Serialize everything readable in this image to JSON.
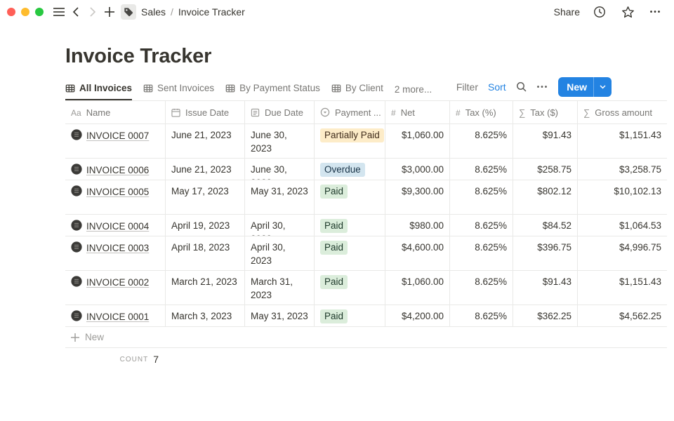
{
  "window": {
    "breadcrumb": {
      "section": "Sales",
      "separator": "/",
      "page": "Invoice Tracker"
    },
    "share_label": "Share"
  },
  "page": {
    "title": "Invoice Tracker"
  },
  "toolbar": {
    "tabs": [
      {
        "label": "All Invoices",
        "icon": "table-view-icon",
        "active": true
      },
      {
        "label": "Sent Invoices",
        "icon": "table-view-icon",
        "active": false
      },
      {
        "label": "By Payment Status",
        "icon": "table-view-icon",
        "active": false
      },
      {
        "label": "By Client",
        "icon": "table-view-icon",
        "active": false
      }
    ],
    "more_views_label": "2 more...",
    "filter_label": "Filter",
    "sort_label": "Sort",
    "search_icon": "search-icon",
    "more_icon": "ellipsis-icon",
    "new_button_label": "New",
    "accent_color": "#2383e2"
  },
  "table": {
    "columns": [
      {
        "label": "Name",
        "icon": "text-icon"
      },
      {
        "label": "Issue Date",
        "icon": "calendar-icon"
      },
      {
        "label": "Due Date",
        "icon": "formula-icon"
      },
      {
        "label": "Payment ...",
        "icon": "select-icon"
      },
      {
        "label": "Net",
        "icon": "hash-icon"
      },
      {
        "label": "Tax (%)",
        "icon": "hash-icon"
      },
      {
        "label": "Tax ($)",
        "icon": "sigma-icon"
      },
      {
        "label": "Gross amount",
        "icon": "sigma-icon"
      }
    ],
    "rows": [
      {
        "name": "INVOICE 0007",
        "issue_date": "June 21, 2023",
        "due_date": "June 30, 2023",
        "payment_status": "Partially Paid",
        "net": "$1,060.00",
        "tax_pct": "8.625%",
        "tax_usd": "$91.43",
        "gross": "$1,151.43"
      },
      {
        "name": "INVOICE 0006",
        "issue_date": "June 21, 2023",
        "due_date": "June 30, 2023",
        "payment_status": "Overdue",
        "net": "$3,000.00",
        "tax_pct": "8.625%",
        "tax_usd": "$258.75",
        "gross": "$3,258.75"
      },
      {
        "name": "INVOICE 0005",
        "issue_date": "May 17, 2023",
        "due_date": "May 31, 2023",
        "payment_status": "Paid",
        "net": "$9,300.00",
        "tax_pct": "8.625%",
        "tax_usd": "$802.12",
        "gross": "$10,102.13"
      },
      {
        "name": "INVOICE 0004",
        "issue_date": "April 19, 2023",
        "due_date": "April 30, 2023",
        "payment_status": "Paid",
        "net": "$980.00",
        "tax_pct": "8.625%",
        "tax_usd": "$84.52",
        "gross": "$1,064.53"
      },
      {
        "name": "INVOICE 0003",
        "issue_date": "April 18, 2023",
        "due_date": "April 30, 2023",
        "payment_status": "Paid",
        "net": "$4,600.00",
        "tax_pct": "8.625%",
        "tax_usd": "$396.75",
        "gross": "$4,996.75"
      },
      {
        "name": "INVOICE 0002",
        "issue_date": "March 21, 2023",
        "due_date": "March 31, 2023",
        "payment_status": "Paid",
        "net": "$1,060.00",
        "tax_pct": "8.625%",
        "tax_usd": "$91.43",
        "gross": "$1,151.43"
      },
      {
        "name": "INVOICE 0001",
        "issue_date": "March 3, 2023",
        "due_date": "May 31, 2023",
        "payment_status": "Paid",
        "net": "$4,200.00",
        "tax_pct": "8.625%",
        "tax_usd": "$362.25",
        "gross": "$4,562.25"
      }
    ],
    "status_colors": {
      "Partially Paid": {
        "bg": "#fdecc8",
        "text": "#402c1b"
      },
      "Overdue": {
        "bg": "#d3e5ef",
        "text": "#183347"
      },
      "Paid": {
        "bg": "#dbeddb",
        "text": "#1c3829"
      }
    }
  },
  "footer": {
    "new_row_label": "New",
    "count_label": "COUNT",
    "count_value": "7"
  }
}
